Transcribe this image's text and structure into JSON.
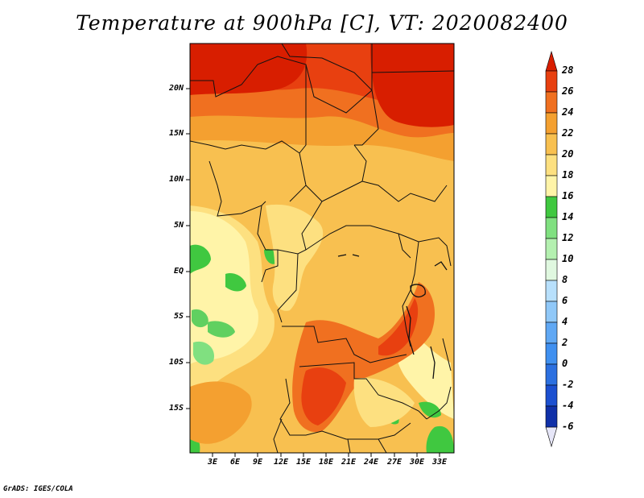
{
  "title": "Temperature at 900hPa [C], VT: 2020082400",
  "footer": "GrADS: IGES/COLA",
  "map": {
    "lat_labels": [
      "20N",
      "15N",
      "10N",
      "5N",
      "EQ",
      "5S",
      "10S",
      "15S"
    ],
    "lon_labels": [
      "3E",
      "6E",
      "9E",
      "12E",
      "15E",
      "18E",
      "21E",
      "24E",
      "27E",
      "30E",
      "33E"
    ]
  },
  "colorbar": {
    "levels": [
      "-6",
      "-4",
      "-2",
      "0",
      "2",
      "4",
      "6",
      "8",
      "10",
      "12",
      "14",
      "16",
      "18",
      "20",
      "22",
      "24",
      "26",
      "28"
    ],
    "colors": [
      "#0a0a6e",
      "#1030a8",
      "#1c50d0",
      "#2c70e0",
      "#4090f0",
      "#60a8f4",
      "#90c8f8",
      "#b8e0fc",
      "#e0f8e0",
      "#b4f0b0",
      "#80e080",
      "#40c840",
      "#fff4a8",
      "#fde080",
      "#f8c050",
      "#f4a030",
      "#f07020",
      "#e84010",
      "#d81e00"
    ]
  }
}
